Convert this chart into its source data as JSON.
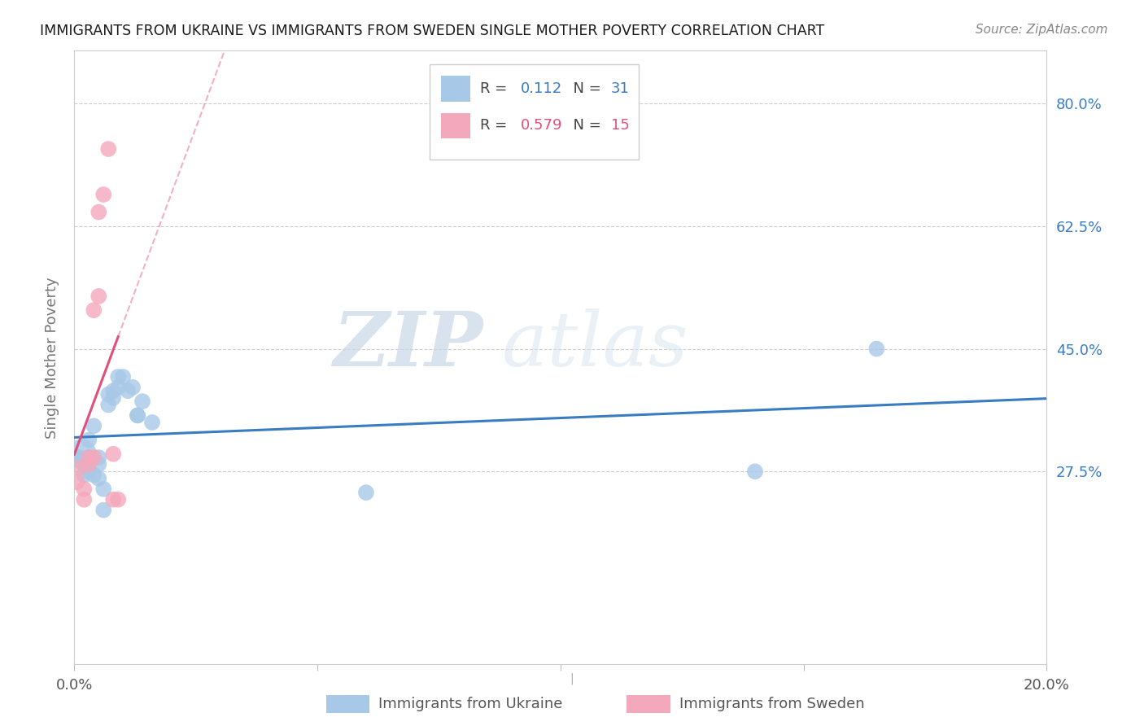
{
  "title": "IMMIGRANTS FROM UKRAINE VS IMMIGRANTS FROM SWEDEN SINGLE MOTHER POVERTY CORRELATION CHART",
  "source": "Source: ZipAtlas.com",
  "ylabel": "Single Mother Poverty",
  "xlim": [
    0.0,
    0.2
  ],
  "ylim": [
    0.0,
    0.875
  ],
  "yticks": [
    0.275,
    0.45,
    0.625,
    0.8
  ],
  "ytick_labels": [
    "27.5%",
    "45.0%",
    "62.5%",
    "80.0%"
  ],
  "xticks": [
    0.0,
    0.05,
    0.1,
    0.15,
    0.2
  ],
  "ukraine_R": 0.112,
  "ukraine_N": 31,
  "sweden_R": 0.579,
  "sweden_N": 15,
  "ukraine_color": "#a8c8e8",
  "sweden_color": "#f4a8bc",
  "ukraine_line_color": "#3a7cc1",
  "sweden_line_color": "#e0507a",
  "watermark_zip": "ZIP",
  "watermark_atlas": "atlas",
  "ukraine_x": [
    0.0005,
    0.001,
    0.0015,
    0.002,
    0.002,
    0.003,
    0.003,
    0.003,
    0.004,
    0.004,
    0.005,
    0.005,
    0.005,
    0.006,
    0.006,
    0.007,
    0.007,
    0.008,
    0.008,
    0.009,
    0.009,
    0.01,
    0.011,
    0.012,
    0.013,
    0.013,
    0.014,
    0.016,
    0.06,
    0.14,
    0.165
  ],
  "ukraine_y": [
    0.295,
    0.295,
    0.3,
    0.285,
    0.27,
    0.295,
    0.32,
    0.275,
    0.34,
    0.27,
    0.295,
    0.285,
    0.265,
    0.25,
    0.22,
    0.385,
    0.37,
    0.38,
    0.39,
    0.395,
    0.41,
    0.41,
    0.39,
    0.395,
    0.355,
    0.355,
    0.375,
    0.345,
    0.245,
    0.275,
    0.45
  ],
  "ukraine_sizes": [
    200,
    200,
    700,
    200,
    200,
    200,
    200,
    200,
    200,
    200,
    200,
    200,
    200,
    200,
    200,
    200,
    200,
    200,
    200,
    200,
    200,
    200,
    200,
    200,
    200,
    200,
    200,
    200,
    200,
    200,
    200
  ],
  "sweden_x": [
    0.0005,
    0.001,
    0.002,
    0.002,
    0.003,
    0.003,
    0.004,
    0.004,
    0.005,
    0.005,
    0.006,
    0.007,
    0.008,
    0.008,
    0.009
  ],
  "sweden_y": [
    0.26,
    0.28,
    0.25,
    0.235,
    0.285,
    0.295,
    0.295,
    0.505,
    0.525,
    0.645,
    0.67,
    0.735,
    0.3,
    0.235,
    0.235
  ],
  "sweden_sizes": [
    200,
    200,
    200,
    200,
    200,
    200,
    200,
    200,
    200,
    200,
    200,
    200,
    200,
    200,
    200
  ]
}
